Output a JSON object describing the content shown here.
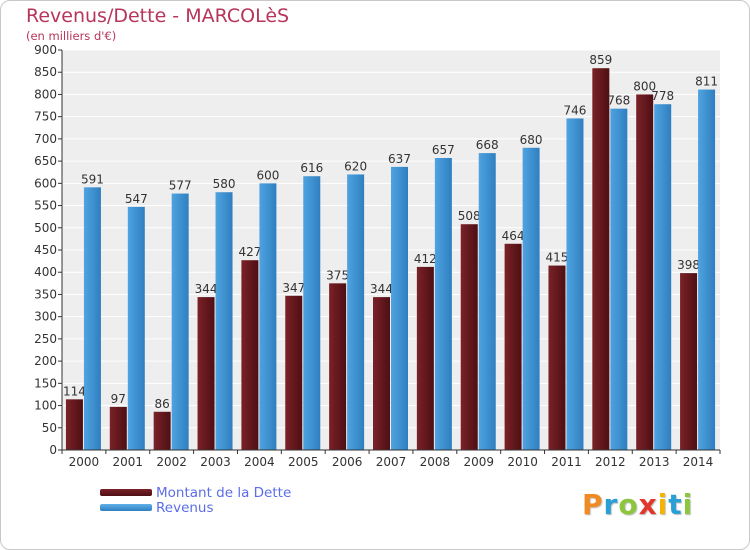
{
  "chart_data": {
    "type": "bar",
    "title": "Revenus/Dette - MARCOLèS",
    "subtitle": "(en milliers d'€)",
    "categories": [
      "2000",
      "2001",
      "2002",
      "2003",
      "2004",
      "2005",
      "2006",
      "2007",
      "2008",
      "2009",
      "2010",
      "2011",
      "2012",
      "2013",
      "2014"
    ],
    "series": [
      {
        "name": "Montant de la Dette",
        "color": "#7a2228",
        "values": [
          114,
          97,
          86,
          344,
          427,
          347,
          375,
          344,
          412,
          508,
          464,
          415,
          859,
          800,
          398
        ]
      },
      {
        "name": "Revenus",
        "color": "#4fa3e0",
        "values": [
          591,
          547,
          577,
          580,
          600,
          616,
          620,
          637,
          657,
          668,
          680,
          746,
          768,
          778,
          811
        ]
      }
    ],
    "ylim": [
      0,
      900
    ],
    "ytick_step": 50,
    "grid": true,
    "legend_position": "bottom-left"
  },
  "logo": {
    "text": "Proxiti",
    "letters": [
      "P",
      "r",
      "o",
      "x",
      "i",
      "t",
      "i"
    ],
    "colors": [
      "#f08a24",
      "#2a9fd6",
      "#8cc63f",
      "#e2382b",
      "#f5b400",
      "#2a9fd6",
      "#8cc63f"
    ]
  }
}
